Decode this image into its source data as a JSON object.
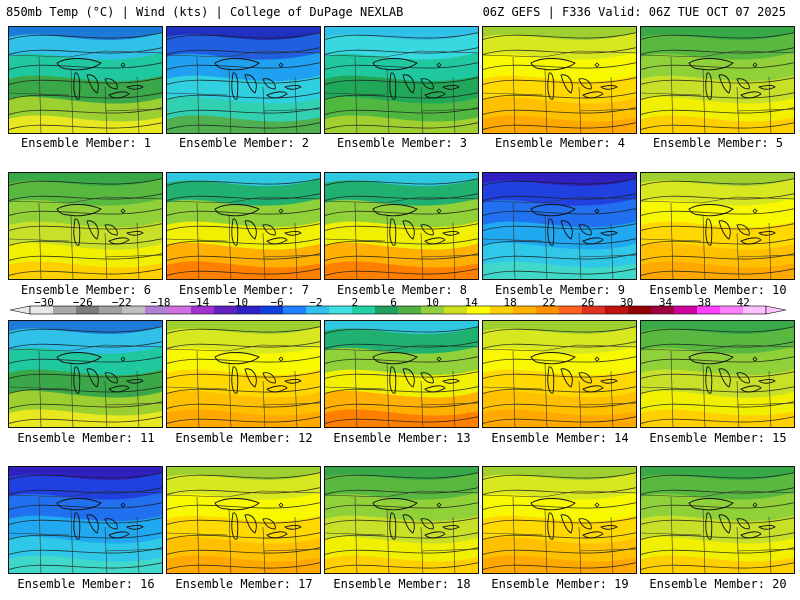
{
  "header": {
    "left": "850mb Temp (°C) | Wind (kts) | College of DuPage NEXLAB",
    "right": "06Z GEFS | F336 Valid: 06Z TUE OCT 07 2025"
  },
  "members": [
    {
      "label": "Ensemble Member: 1",
      "theme": "cool-mix"
    },
    {
      "label": "Ensemble Member: 2",
      "theme": "cold"
    },
    {
      "label": "Ensemble Member: 3",
      "theme": "cool"
    },
    {
      "label": "Ensemble Member: 4",
      "theme": "warm"
    },
    {
      "label": "Ensemble Member: 5",
      "theme": "mild"
    },
    {
      "label": "Ensemble Member: 6",
      "theme": "mild"
    },
    {
      "label": "Ensemble Member: 7",
      "theme": "warm-west"
    },
    {
      "label": "Ensemble Member: 8",
      "theme": "warm-west"
    },
    {
      "label": "Ensemble Member: 9",
      "theme": "very-cold"
    },
    {
      "label": "Ensemble Member: 10",
      "theme": "warm"
    },
    {
      "label": "Ensemble Member: 11",
      "theme": "cool-mix"
    },
    {
      "label": "Ensemble Member: 12",
      "theme": "warm"
    },
    {
      "label": "Ensemble Member: 13",
      "theme": "warm-west"
    },
    {
      "label": "Ensemble Member: 14",
      "theme": "warm"
    },
    {
      "label": "Ensemble Member: 15",
      "theme": "mild"
    },
    {
      "label": "Ensemble Member: 16",
      "theme": "very-cold"
    },
    {
      "label": "Ensemble Member: 17",
      "theme": "warm"
    },
    {
      "label": "Ensemble Member: 18",
      "theme": "mild"
    },
    {
      "label": "Ensemble Member: 19",
      "theme": "warm"
    },
    {
      "label": "Ensemble Member: 20",
      "theme": "mild"
    }
  ],
  "colorbar": {
    "ticks": [
      "−30",
      "−26",
      "−22",
      "−18",
      "−14",
      "−10",
      "−6",
      "−2",
      "2",
      "6",
      "10",
      "14",
      "18",
      "22",
      "26",
      "30",
      "34",
      "38",
      "42"
    ],
    "colors": [
      "#e8e8e8",
      "#a8a8a8",
      "#7c7c7c",
      "#a0a0a0",
      "#c0c0c0",
      "#b080d0",
      "#d070e0",
      "#a030d0",
      "#6020c0",
      "#3020c8",
      "#1040e0",
      "#2080ff",
      "#30c0f0",
      "#40e0e0",
      "#20d0a0",
      "#20a060",
      "#50b040",
      "#90d040",
      "#d0e020",
      "#ffff00",
      "#ffd000",
      "#ffb000",
      "#ff9000",
      "#ff6020",
      "#e03020",
      "#c01010",
      "#900000",
      "#a00040",
      "#d000a0",
      "#ff40ff",
      "#ff80ff",
      "#ffc0ff"
    ]
  }
}
